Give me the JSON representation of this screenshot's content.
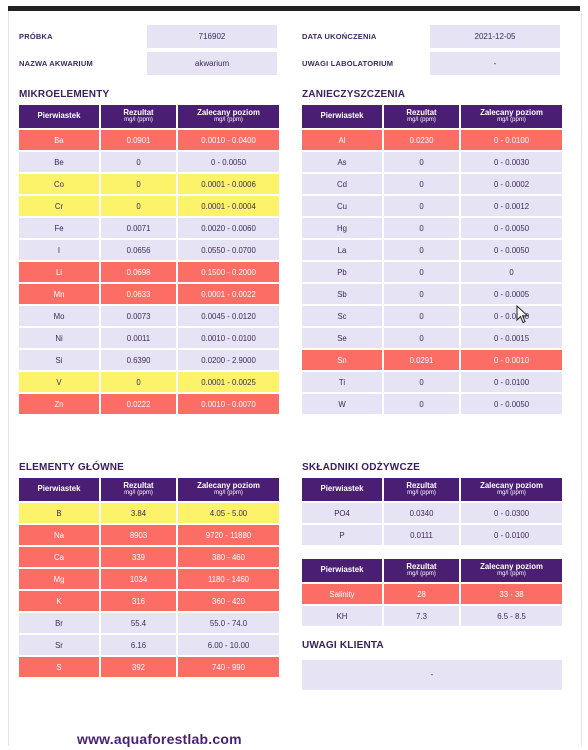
{
  "info_left": [
    {
      "label": "PRÓBKA",
      "value": "716902"
    },
    {
      "label": "NAZWA AKWARIUM",
      "value": "akwarium"
    }
  ],
  "info_right": [
    {
      "label": "DATA UKOŃCZENIA",
      "value": "2021-12-05"
    },
    {
      "label": "UWAGI LABOLATORIUM",
      "value": "-"
    }
  ],
  "headers": {
    "element": "Pierwiastek",
    "result": "Rezultat",
    "recommended": "Zalecany poziom",
    "unit": "mg/l (ppm)"
  },
  "sections": {
    "micro": {
      "title": "MIKROELEMENTY",
      "rows": [
        {
          "el": "Ba",
          "res": "0.0901",
          "rec": "0.0010 - 0.0400",
          "status": "red"
        },
        {
          "el": "Be",
          "res": "0",
          "rec": "0 - 0.0050",
          "status": "ok"
        },
        {
          "el": "Co",
          "res": "0",
          "rec": "0.0001 - 0.0006",
          "status": "yel"
        },
        {
          "el": "Cr",
          "res": "0",
          "rec": "0.0001 - 0.0004",
          "status": "yel"
        },
        {
          "el": "Fe",
          "res": "0.0071",
          "rec": "0.0020 - 0.0060",
          "status": "ok"
        },
        {
          "el": "I",
          "res": "0.0656",
          "rec": "0.0550 - 0.0700",
          "status": "ok"
        },
        {
          "el": "Li",
          "res": "0.0698",
          "rec": "0.1500 - 0.2000",
          "status": "red"
        },
        {
          "el": "Mn",
          "res": "0.0633",
          "rec": "0.0001 - 0.0022",
          "status": "red"
        },
        {
          "el": "Mo",
          "res": "0.0073",
          "rec": "0.0045 - 0.0120",
          "status": "ok"
        },
        {
          "el": "Ni",
          "res": "0.0011",
          "rec": "0.0010 - 0.0100",
          "status": "ok"
        },
        {
          "el": "Si",
          "res": "0.6390",
          "rec": "0.0200 - 2.9000",
          "status": "ok"
        },
        {
          "el": "V",
          "res": "0",
          "rec": "0.0001 - 0.0025",
          "status": "yel"
        },
        {
          "el": "Zn",
          "res": "0.0222",
          "rec": "0.0010 - 0.0070",
          "status": "red"
        }
      ]
    },
    "pollutants": {
      "title": "ZANIECZYSZCZENIA",
      "rows": [
        {
          "el": "Al",
          "res": "0.0230",
          "rec": "0 - 0.0100",
          "status": "red"
        },
        {
          "el": "As",
          "res": "0",
          "rec": "0 - 0.0030",
          "status": "ok"
        },
        {
          "el": "Cd",
          "res": "0",
          "rec": "0 - 0.0002",
          "status": "ok"
        },
        {
          "el": "Cu",
          "res": "0",
          "rec": "0 - 0.0012",
          "status": "ok"
        },
        {
          "el": "Hg",
          "res": "0",
          "rec": "0 - 0.0050",
          "status": "ok"
        },
        {
          "el": "La",
          "res": "0",
          "rec": "0 - 0.0050",
          "status": "ok"
        },
        {
          "el": "Pb",
          "res": "0",
          "rec": "0",
          "status": "ok"
        },
        {
          "el": "Sb",
          "res": "0",
          "rec": "0 - 0.0005",
          "status": "ok"
        },
        {
          "el": "Sc",
          "res": "0",
          "rec": "0 - 0.0050",
          "status": "ok"
        },
        {
          "el": "Se",
          "res": "0",
          "rec": "0 - 0.0015",
          "status": "ok"
        },
        {
          "el": "Sn",
          "res": "0.0291",
          "rec": "0 - 0.0010",
          "status": "red"
        },
        {
          "el": "Ti",
          "res": "0",
          "rec": "0 - 0.0100",
          "status": "ok"
        },
        {
          "el": "W",
          "res": "0",
          "rec": "0 - 0.0050",
          "status": "ok"
        }
      ]
    },
    "main": {
      "title": "ELEMENTY GŁÓWNE",
      "rows": [
        {
          "el": "B",
          "res": "3.84",
          "rec": "4.05 - 5.00",
          "status": "yel"
        },
        {
          "el": "Na",
          "res": "8903",
          "rec": "9720 - 11880",
          "status": "red"
        },
        {
          "el": "Ca",
          "res": "339",
          "rec": "380 - 460",
          "status": "red"
        },
        {
          "el": "Mg",
          "res": "1034",
          "rec": "1180 - 1460",
          "status": "red"
        },
        {
          "el": "K",
          "res": "316",
          "rec": "360 - 420",
          "status": "red"
        },
        {
          "el": "Br",
          "res": "55.4",
          "rec": "55.0 - 74.0",
          "status": "ok"
        },
        {
          "el": "Sr",
          "res": "6.16",
          "rec": "6.00 - 10.00",
          "status": "ok"
        },
        {
          "el": "S",
          "res": "392",
          "rec": "740 - 990",
          "status": "red"
        }
      ]
    },
    "nutrients": {
      "title": "SKŁADNIKI ODŻYWCZE",
      "rows": [
        {
          "el": "PO4",
          "res": "0.0340",
          "rec": "0 - 0.0300",
          "status": "ok"
        },
        {
          "el": "P",
          "res": "0.0111",
          "rec": "0 - 0.0100",
          "status": "ok"
        }
      ]
    },
    "salinity": {
      "rows": [
        {
          "el": "Salinity",
          "res": "28",
          "rec": "33 - 38",
          "status": "red"
        },
        {
          "el": "KH",
          "res": "7.3",
          "rec": "6.5 - 8.5",
          "status": "ok"
        }
      ]
    }
  },
  "client_notes": {
    "title": "UWAGI KLIENTA",
    "value": "-"
  },
  "footer": "www.aquaforestlab.com"
}
